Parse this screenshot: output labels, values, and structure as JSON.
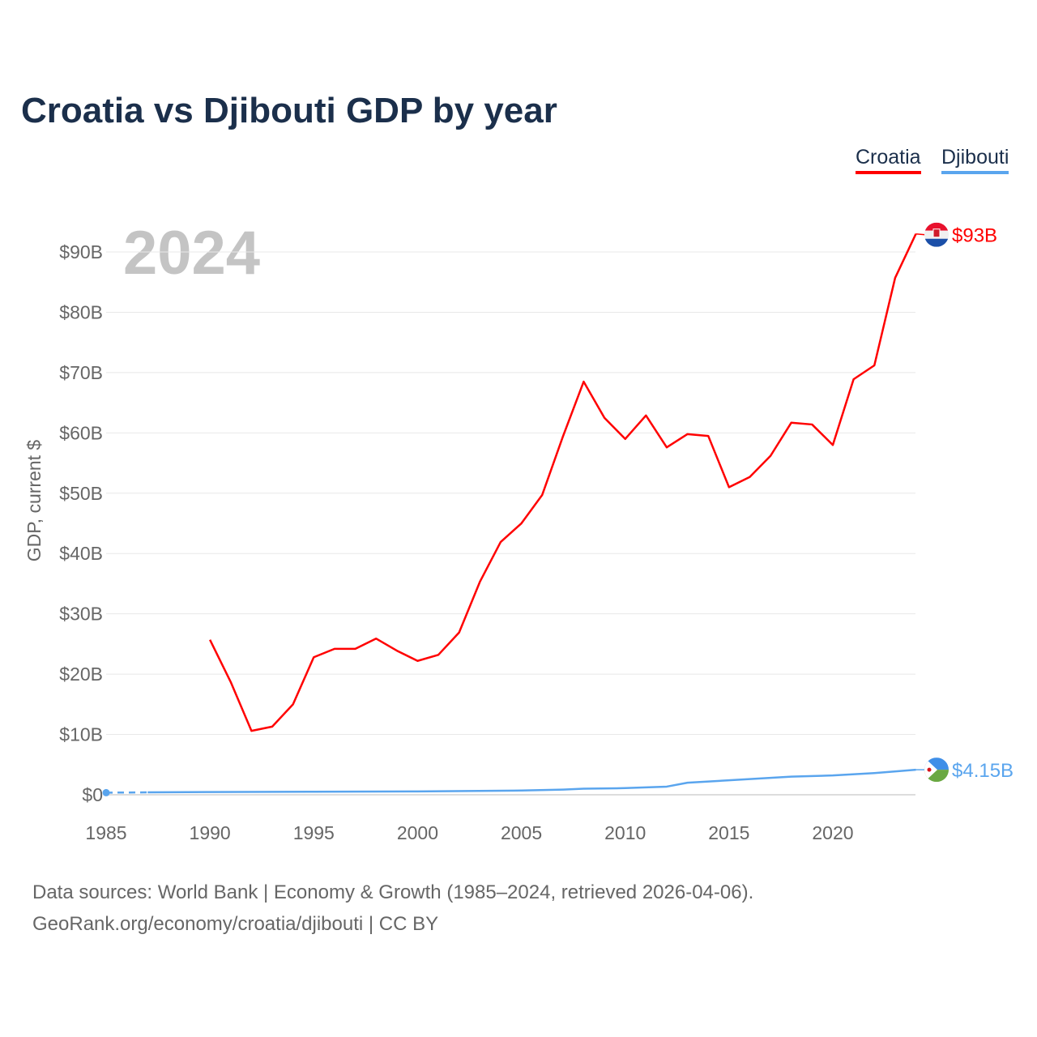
{
  "title": "Croatia vs Djibouti GDP by year",
  "year_watermark": "2024",
  "source_line1": "Data sources: World Bank | Economy & Growth (1985–2024, retrieved 2026-04-06).",
  "source_line2": "GeoRank.org/economy/croatia/djibouti | CC BY",
  "chart_data": {
    "type": "line",
    "title": "Croatia vs Djibouti GDP by year",
    "xlabel": "",
    "ylabel": "GDP, current $",
    "xlim": [
      1985,
      2024
    ],
    "ylim": [
      0,
      95
    ],
    "x_ticks": [
      1985,
      1990,
      1995,
      2000,
      2005,
      2010,
      2015,
      2020
    ],
    "y_ticks": [
      0,
      10,
      20,
      30,
      40,
      50,
      60,
      70,
      80,
      90
    ],
    "y_tick_labels": [
      "$0",
      "$10B",
      "$20B",
      "$30B",
      "$40B",
      "$50B",
      "$60B",
      "$70B",
      "$80B",
      "$90B"
    ],
    "legend_placement": "top-right",
    "grid": true,
    "series": [
      {
        "name": "Croatia",
        "color": "#ff0000",
        "end_label": "$93B",
        "flag": "croatia-flag",
        "x": [
          1990,
          1991,
          1992,
          1993,
          1994,
          1995,
          1996,
          1997,
          1998,
          1999,
          2000,
          2001,
          2002,
          2003,
          2004,
          2005,
          2006,
          2007,
          2008,
          2009,
          2010,
          2011,
          2012,
          2013,
          2014,
          2015,
          2016,
          2017,
          2018,
          2019,
          2020,
          2021,
          2022,
          2023,
          2024
        ],
        "values": [
          25.7,
          18.7,
          10.6,
          11.3,
          15.0,
          22.8,
          24.2,
          24.2,
          25.9,
          23.9,
          22.2,
          23.2,
          26.9,
          35.3,
          41.9,
          45.0,
          49.7,
          59.4,
          68.5,
          62.5,
          59.0,
          62.9,
          57.6,
          59.8,
          59.5,
          51.0,
          52.7,
          56.2,
          61.7,
          61.4,
          58.0,
          68.9,
          71.2,
          85.7,
          93.0
        ]
      },
      {
        "name": "Djibouti",
        "color": "#5aa5ee",
        "end_label": "$4.15B",
        "flag": "djibouti-flag",
        "x": [
          1985,
          1987,
          1990,
          1995,
          2000,
          2005,
          2007,
          2008,
          2010,
          2012,
          2013,
          2015,
          2018,
          2020,
          2022,
          2024
        ],
        "values": [
          0.35,
          0.4,
          0.45,
          0.5,
          0.55,
          0.7,
          0.85,
          1.0,
          1.1,
          1.35,
          2.0,
          2.4,
          3.0,
          3.2,
          3.6,
          4.15
        ]
      }
    ]
  }
}
